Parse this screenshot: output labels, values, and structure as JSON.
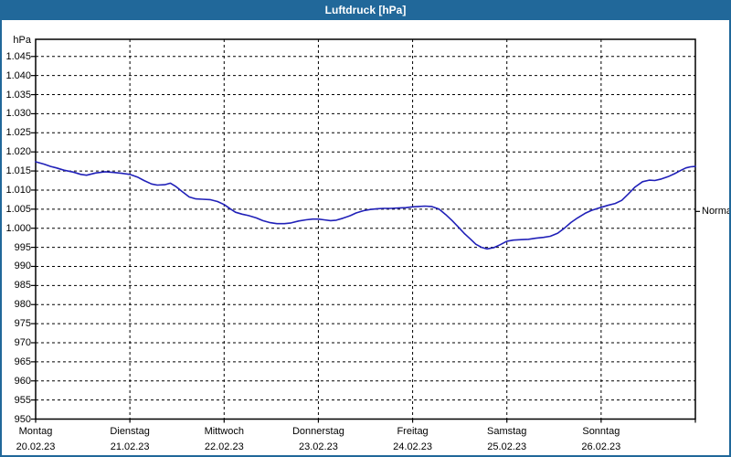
{
  "window": {
    "title": "Luftdruck [hPa]"
  },
  "colors": {
    "frame": "#21689a",
    "titlebar_text": "#ffffff",
    "plot_background": "#ffffff",
    "grid": "#000000",
    "axis_text": "#000000",
    "line": "#2020b8"
  },
  "annotations": {
    "normal_label": "Normal",
    "normal_value": 1004.4
  },
  "chart_data": {
    "type": "line",
    "title": "Luftdruck [hPa]",
    "xlabel": "",
    "ylabel": "hPa",
    "x_unit": "days (0 = Montag 20.02.23 00:00)",
    "xlim": [
      0,
      7
    ],
    "ylim": [
      950,
      1049.5
    ],
    "grid": "dashed",
    "y_ticks": {
      "values": [
        1045,
        1040,
        1035,
        1030,
        1025,
        1020,
        1015,
        1010,
        1005,
        1000,
        995,
        990,
        985,
        980,
        975,
        970,
        965,
        960,
        955,
        950
      ],
      "labels": [
        "1.045",
        "1.040",
        "1.035",
        "1.030",
        "1.025",
        "1.020",
        "1.015",
        "1.010",
        "1.005",
        "1.000",
        "995",
        "990",
        "985",
        "980",
        "975",
        "970",
        "965",
        "960",
        "955",
        "950"
      ]
    },
    "x_ticks": {
      "positions": [
        0,
        1,
        2,
        3,
        4,
        5,
        6,
        7
      ],
      "days": [
        {
          "day": 0,
          "weekday": "Montag",
          "date": "20.02.23"
        },
        {
          "day": 1,
          "weekday": "Dienstag",
          "date": "21.02.23"
        },
        {
          "day": 2,
          "weekday": "Mittwoch",
          "date": "22.02.23"
        },
        {
          "day": 3,
          "weekday": "Donnerstag",
          "date": "23.02.23"
        },
        {
          "day": 4,
          "weekday": "Freitag",
          "date": "24.02.23"
        },
        {
          "day": 5,
          "weekday": "Samstag",
          "date": "25.02.23"
        },
        {
          "day": 6,
          "weekday": "Sonntag",
          "date": "26.02.23"
        }
      ]
    },
    "series": [
      {
        "name": "Luftdruck",
        "points": [
          [
            0.0,
            1017.4
          ],
          [
            0.09,
            1016.8
          ],
          [
            0.16,
            1016.2
          ],
          [
            0.22,
            1015.8
          ],
          [
            0.3,
            1015.2
          ],
          [
            0.4,
            1014.7
          ],
          [
            0.48,
            1014.1
          ],
          [
            0.54,
            1013.9
          ],
          [
            0.64,
            1014.5
          ],
          [
            0.74,
            1014.8
          ],
          [
            0.83,
            1014.6
          ],
          [
            0.91,
            1014.4
          ],
          [
            1.0,
            1014.1
          ],
          [
            1.08,
            1013.4
          ],
          [
            1.15,
            1012.5
          ],
          [
            1.23,
            1011.6
          ],
          [
            1.29,
            1011.3
          ],
          [
            1.37,
            1011.4
          ],
          [
            1.43,
            1011.8
          ],
          [
            1.49,
            1010.9
          ],
          [
            1.56,
            1009.5
          ],
          [
            1.63,
            1008.2
          ],
          [
            1.7,
            1007.7
          ],
          [
            1.77,
            1007.6
          ],
          [
            1.85,
            1007.5
          ],
          [
            1.93,
            1007.0
          ],
          [
            2.0,
            1006.2
          ],
          [
            2.07,
            1005.0
          ],
          [
            2.12,
            1004.2
          ],
          [
            2.19,
            1003.7
          ],
          [
            2.26,
            1003.3
          ],
          [
            2.34,
            1002.7
          ],
          [
            2.41,
            1002.0
          ],
          [
            2.48,
            1001.5
          ],
          [
            2.56,
            1001.2
          ],
          [
            2.64,
            1001.2
          ],
          [
            2.71,
            1001.4
          ],
          [
            2.79,
            1001.9
          ],
          [
            2.87,
            1002.2
          ],
          [
            2.94,
            1002.4
          ],
          [
            3.0,
            1002.4
          ],
          [
            3.06,
            1002.2
          ],
          [
            3.13,
            1002.0
          ],
          [
            3.19,
            1002.1
          ],
          [
            3.26,
            1002.6
          ],
          [
            3.34,
            1003.3
          ],
          [
            3.4,
            1004.0
          ],
          [
            3.48,
            1004.6
          ],
          [
            3.55,
            1004.9
          ],
          [
            3.62,
            1005.1
          ],
          [
            3.69,
            1005.2
          ],
          [
            3.77,
            1005.2
          ],
          [
            3.85,
            1005.3
          ],
          [
            3.93,
            1005.4
          ],
          [
            4.0,
            1005.6
          ],
          [
            4.06,
            1005.7
          ],
          [
            4.13,
            1005.8
          ],
          [
            4.2,
            1005.7
          ],
          [
            4.28,
            1005.0
          ],
          [
            4.35,
            1003.6
          ],
          [
            4.42,
            1002.0
          ],
          [
            4.49,
            1000.2
          ],
          [
            4.55,
            998.6
          ],
          [
            4.62,
            997.0
          ],
          [
            4.67,
            995.8
          ],
          [
            4.73,
            995.0
          ],
          [
            4.79,
            994.6
          ],
          [
            4.86,
            994.9
          ],
          [
            4.93,
            995.7
          ],
          [
            5.0,
            996.6
          ],
          [
            5.07,
            996.9
          ],
          [
            5.15,
            997.0
          ],
          [
            5.23,
            997.1
          ],
          [
            5.31,
            997.4
          ],
          [
            5.39,
            997.6
          ],
          [
            5.46,
            997.9
          ],
          [
            5.54,
            998.7
          ],
          [
            5.61,
            1000.0
          ],
          [
            5.68,
            1001.5
          ],
          [
            5.75,
            1002.7
          ],
          [
            5.83,
            1003.9
          ],
          [
            5.9,
            1004.7
          ],
          [
            5.99,
            1005.4
          ],
          [
            6.07,
            1006.0
          ],
          [
            6.15,
            1006.5
          ],
          [
            6.22,
            1007.3
          ],
          [
            6.29,
            1009.0
          ],
          [
            6.36,
            1010.8
          ],
          [
            6.44,
            1012.2
          ],
          [
            6.51,
            1012.6
          ],
          [
            6.57,
            1012.5
          ],
          [
            6.64,
            1012.9
          ],
          [
            6.71,
            1013.5
          ],
          [
            6.78,
            1014.3
          ],
          [
            6.85,
            1015.2
          ],
          [
            6.9,
            1015.8
          ],
          [
            6.95,
            1016.1
          ],
          [
            7.0,
            1016.2
          ]
        ]
      }
    ],
    "legend": "none"
  }
}
